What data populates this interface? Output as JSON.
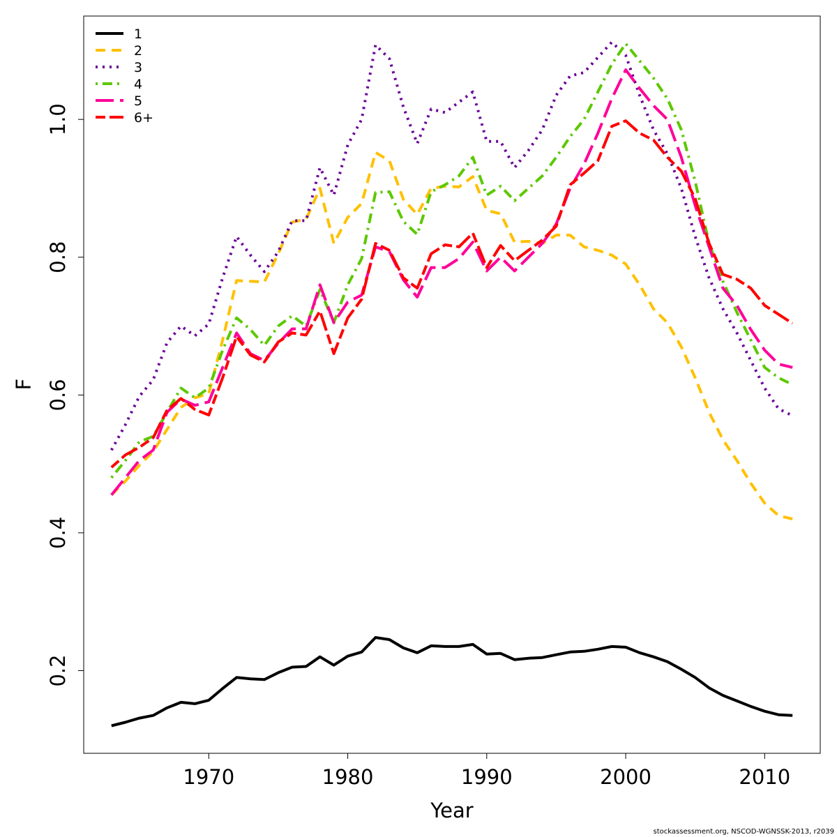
{
  "chart_data": {
    "type": "line",
    "xlabel": "Year",
    "ylabel": "F",
    "xlim": [
      1961.0,
      2014.0
    ],
    "ylim": [
      0.08,
      1.15
    ],
    "x_ticks": [
      1970,
      1980,
      1990,
      2000,
      2010
    ],
    "y_ticks": [
      0.2,
      0.4,
      0.6,
      0.8,
      1.0
    ],
    "y_tick_labels": [
      "0.2",
      "0.4",
      "0.6",
      "0.8",
      "1.0"
    ],
    "legend_position": "top-left",
    "x": [
      1963,
      1964,
      1965,
      1966,
      1967,
      1968,
      1969,
      1970,
      1971,
      1972,
      1973,
      1974,
      1975,
      1976,
      1977,
      1978,
      1979,
      1980,
      1981,
      1982,
      1983,
      1984,
      1985,
      1986,
      1987,
      1988,
      1989,
      1990,
      1991,
      1992,
      1993,
      1994,
      1995,
      1996,
      1997,
      1998,
      1999,
      2000,
      2001,
      2002,
      2003,
      2004,
      2005,
      2006,
      2007,
      2008,
      2009,
      2010,
      2011,
      2012
    ],
    "series": [
      {
        "name": "1",
        "color": "#000000",
        "dash": "solid",
        "values": [
          0.12,
          0.125,
          0.131,
          0.135,
          0.146,
          0.154,
          0.152,
          0.157,
          0.174,
          0.19,
          0.188,
          0.187,
          0.197,
          0.205,
          0.206,
          0.22,
          0.208,
          0.221,
          0.227,
          0.248,
          0.245,
          0.233,
          0.226,
          0.236,
          0.235,
          0.235,
          0.238,
          0.224,
          0.225,
          0.216,
          0.218,
          0.219,
          0.223,
          0.227,
          0.228,
          0.231,
          0.235,
          0.234,
          0.226,
          0.22,
          0.213,
          0.202,
          0.19,
          0.175,
          0.164,
          0.156,
          0.148,
          0.141,
          0.136,
          0.135
        ]
      },
      {
        "name": "2",
        "color": "#ffc000",
        "dash": "dashed",
        "values": [
          0.455,
          0.475,
          0.498,
          0.518,
          0.55,
          0.582,
          0.596,
          0.602,
          0.68,
          0.766,
          0.765,
          0.764,
          0.805,
          0.851,
          0.855,
          0.9,
          0.82,
          0.858,
          0.878,
          0.952,
          0.94,
          0.884,
          0.862,
          0.9,
          0.903,
          0.902,
          0.917,
          0.868,
          0.863,
          0.822,
          0.823,
          0.82,
          0.832,
          0.832,
          0.815,
          0.81,
          0.803,
          0.79,
          0.76,
          0.725,
          0.705,
          0.67,
          0.625,
          0.575,
          0.535,
          0.505,
          0.472,
          0.443,
          0.425,
          0.42
        ]
      },
      {
        "name": "3",
        "color": "#6a0098",
        "dash": "dotted",
        "values": [
          0.52,
          0.557,
          0.598,
          0.622,
          0.676,
          0.7,
          0.686,
          0.703,
          0.77,
          0.83,
          0.803,
          0.779,
          0.808,
          0.853,
          0.853,
          0.93,
          0.89,
          0.963,
          1.0,
          1.108,
          1.088,
          1.018,
          0.965,
          1.015,
          1.01,
          1.025,
          1.04,
          0.968,
          0.968,
          0.93,
          0.955,
          0.985,
          1.035,
          1.063,
          1.068,
          1.09,
          1.112,
          1.093,
          1.035,
          0.985,
          0.95,
          0.9,
          0.83,
          0.77,
          0.725,
          0.69,
          0.65,
          0.61,
          0.58,
          0.57
        ]
      },
      {
        "name": "4",
        "color": "#5cc800",
        "dash": "dotdash",
        "values": [
          0.48,
          0.505,
          0.532,
          0.54,
          0.575,
          0.61,
          0.596,
          0.61,
          0.665,
          0.712,
          0.695,
          0.672,
          0.7,
          0.715,
          0.7,
          0.753,
          0.705,
          0.76,
          0.798,
          0.894,
          0.895,
          0.852,
          0.833,
          0.895,
          0.905,
          0.918,
          0.945,
          0.89,
          0.903,
          0.882,
          0.9,
          0.918,
          0.945,
          0.975,
          1.0,
          1.04,
          1.08,
          1.11,
          1.085,
          1.06,
          1.03,
          0.985,
          0.91,
          0.82,
          0.765,
          0.72,
          0.68,
          0.64,
          0.625,
          0.615
        ]
      },
      {
        "name": "5",
        "color": "#ff0099",
        "dash": "longdash",
        "values": [
          0.455,
          0.48,
          0.505,
          0.52,
          0.575,
          0.594,
          0.585,
          0.59,
          0.64,
          0.69,
          0.66,
          0.65,
          0.675,
          0.696,
          0.696,
          0.76,
          0.705,
          0.735,
          0.745,
          0.815,
          0.808,
          0.767,
          0.742,
          0.785,
          0.785,
          0.798,
          0.822,
          0.78,
          0.8,
          0.78,
          0.8,
          0.82,
          0.848,
          0.9,
          0.935,
          0.98,
          1.03,
          1.072,
          1.045,
          1.02,
          1.0,
          0.945,
          0.875,
          0.815,
          0.755,
          0.73,
          0.695,
          0.665,
          0.645,
          0.64
        ]
      },
      {
        "name": "6+",
        "color": "#ff0000",
        "dash": "twodash",
        "values": [
          0.495,
          0.513,
          0.524,
          0.538,
          0.578,
          0.595,
          0.579,
          0.571,
          0.625,
          0.685,
          0.658,
          0.648,
          0.677,
          0.69,
          0.687,
          0.722,
          0.66,
          0.712,
          0.739,
          0.82,
          0.81,
          0.77,
          0.755,
          0.805,
          0.818,
          0.815,
          0.835,
          0.785,
          0.817,
          0.795,
          0.81,
          0.825,
          0.845,
          0.905,
          0.922,
          0.94,
          0.99,
          0.998,
          0.98,
          0.97,
          0.945,
          0.925,
          0.885,
          0.82,
          0.775,
          0.768,
          0.755,
          0.73,
          0.717,
          0.704
        ]
      }
    ]
  },
  "footer": "stockassessment.org, NSCOD-WGNSSK-2013, r2039"
}
